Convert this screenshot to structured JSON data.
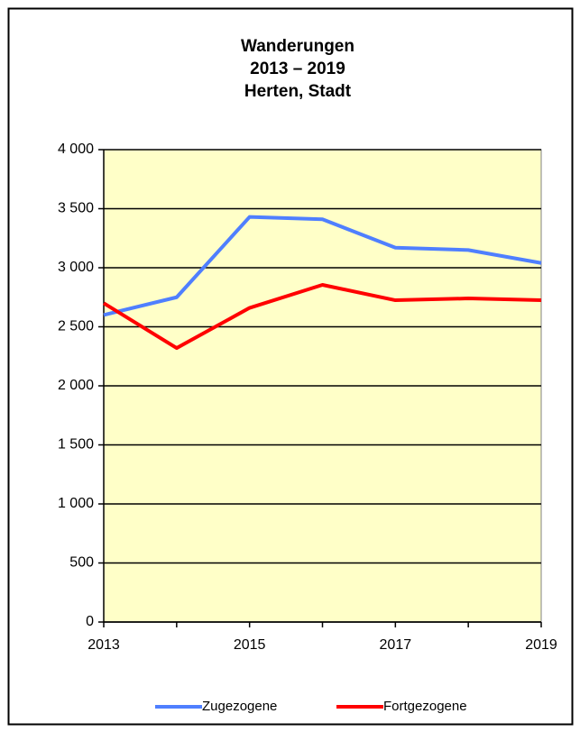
{
  "chart_data": {
    "type": "line",
    "title": "Wanderungen",
    "subtitle": [
      "2013 – 2019",
      "Herten, Stadt"
    ],
    "x": [
      2013,
      2014,
      2015,
      2016,
      2017,
      2018,
      2019
    ],
    "series": [
      {
        "name": "Zugezogene",
        "color": "#4f7fff",
        "values": [
          2600,
          2750,
          3430,
          3410,
          3170,
          3150,
          3040
        ]
      },
      {
        "name": "Fortgezogene",
        "color": "#ff0000",
        "values": [
          2700,
          2320,
          2660,
          2855,
          2725,
          2740,
          2725
        ]
      }
    ],
    "xlim": [
      2013,
      2019
    ],
    "xticks": [
      2013,
      2015,
      2017,
      2019
    ],
    "ylim": [
      0,
      4000
    ],
    "yticks": [
      0,
      500,
      {
        "value": 1000,
        "label": "1 000"
      },
      {
        "value": 1500,
        "label": "1 500"
      },
      {
        "value": 2000,
        "label": "2 000"
      },
      {
        "value": 2500,
        "label": "2 500"
      },
      {
        "value": 3000,
        "label": "3 000"
      },
      {
        "value": 3500,
        "label": "3 500"
      },
      {
        "value": 4000,
        "label": "4 000"
      }
    ],
    "grid": true,
    "legend": "bottom",
    "plot_background": "#ffffc8"
  }
}
